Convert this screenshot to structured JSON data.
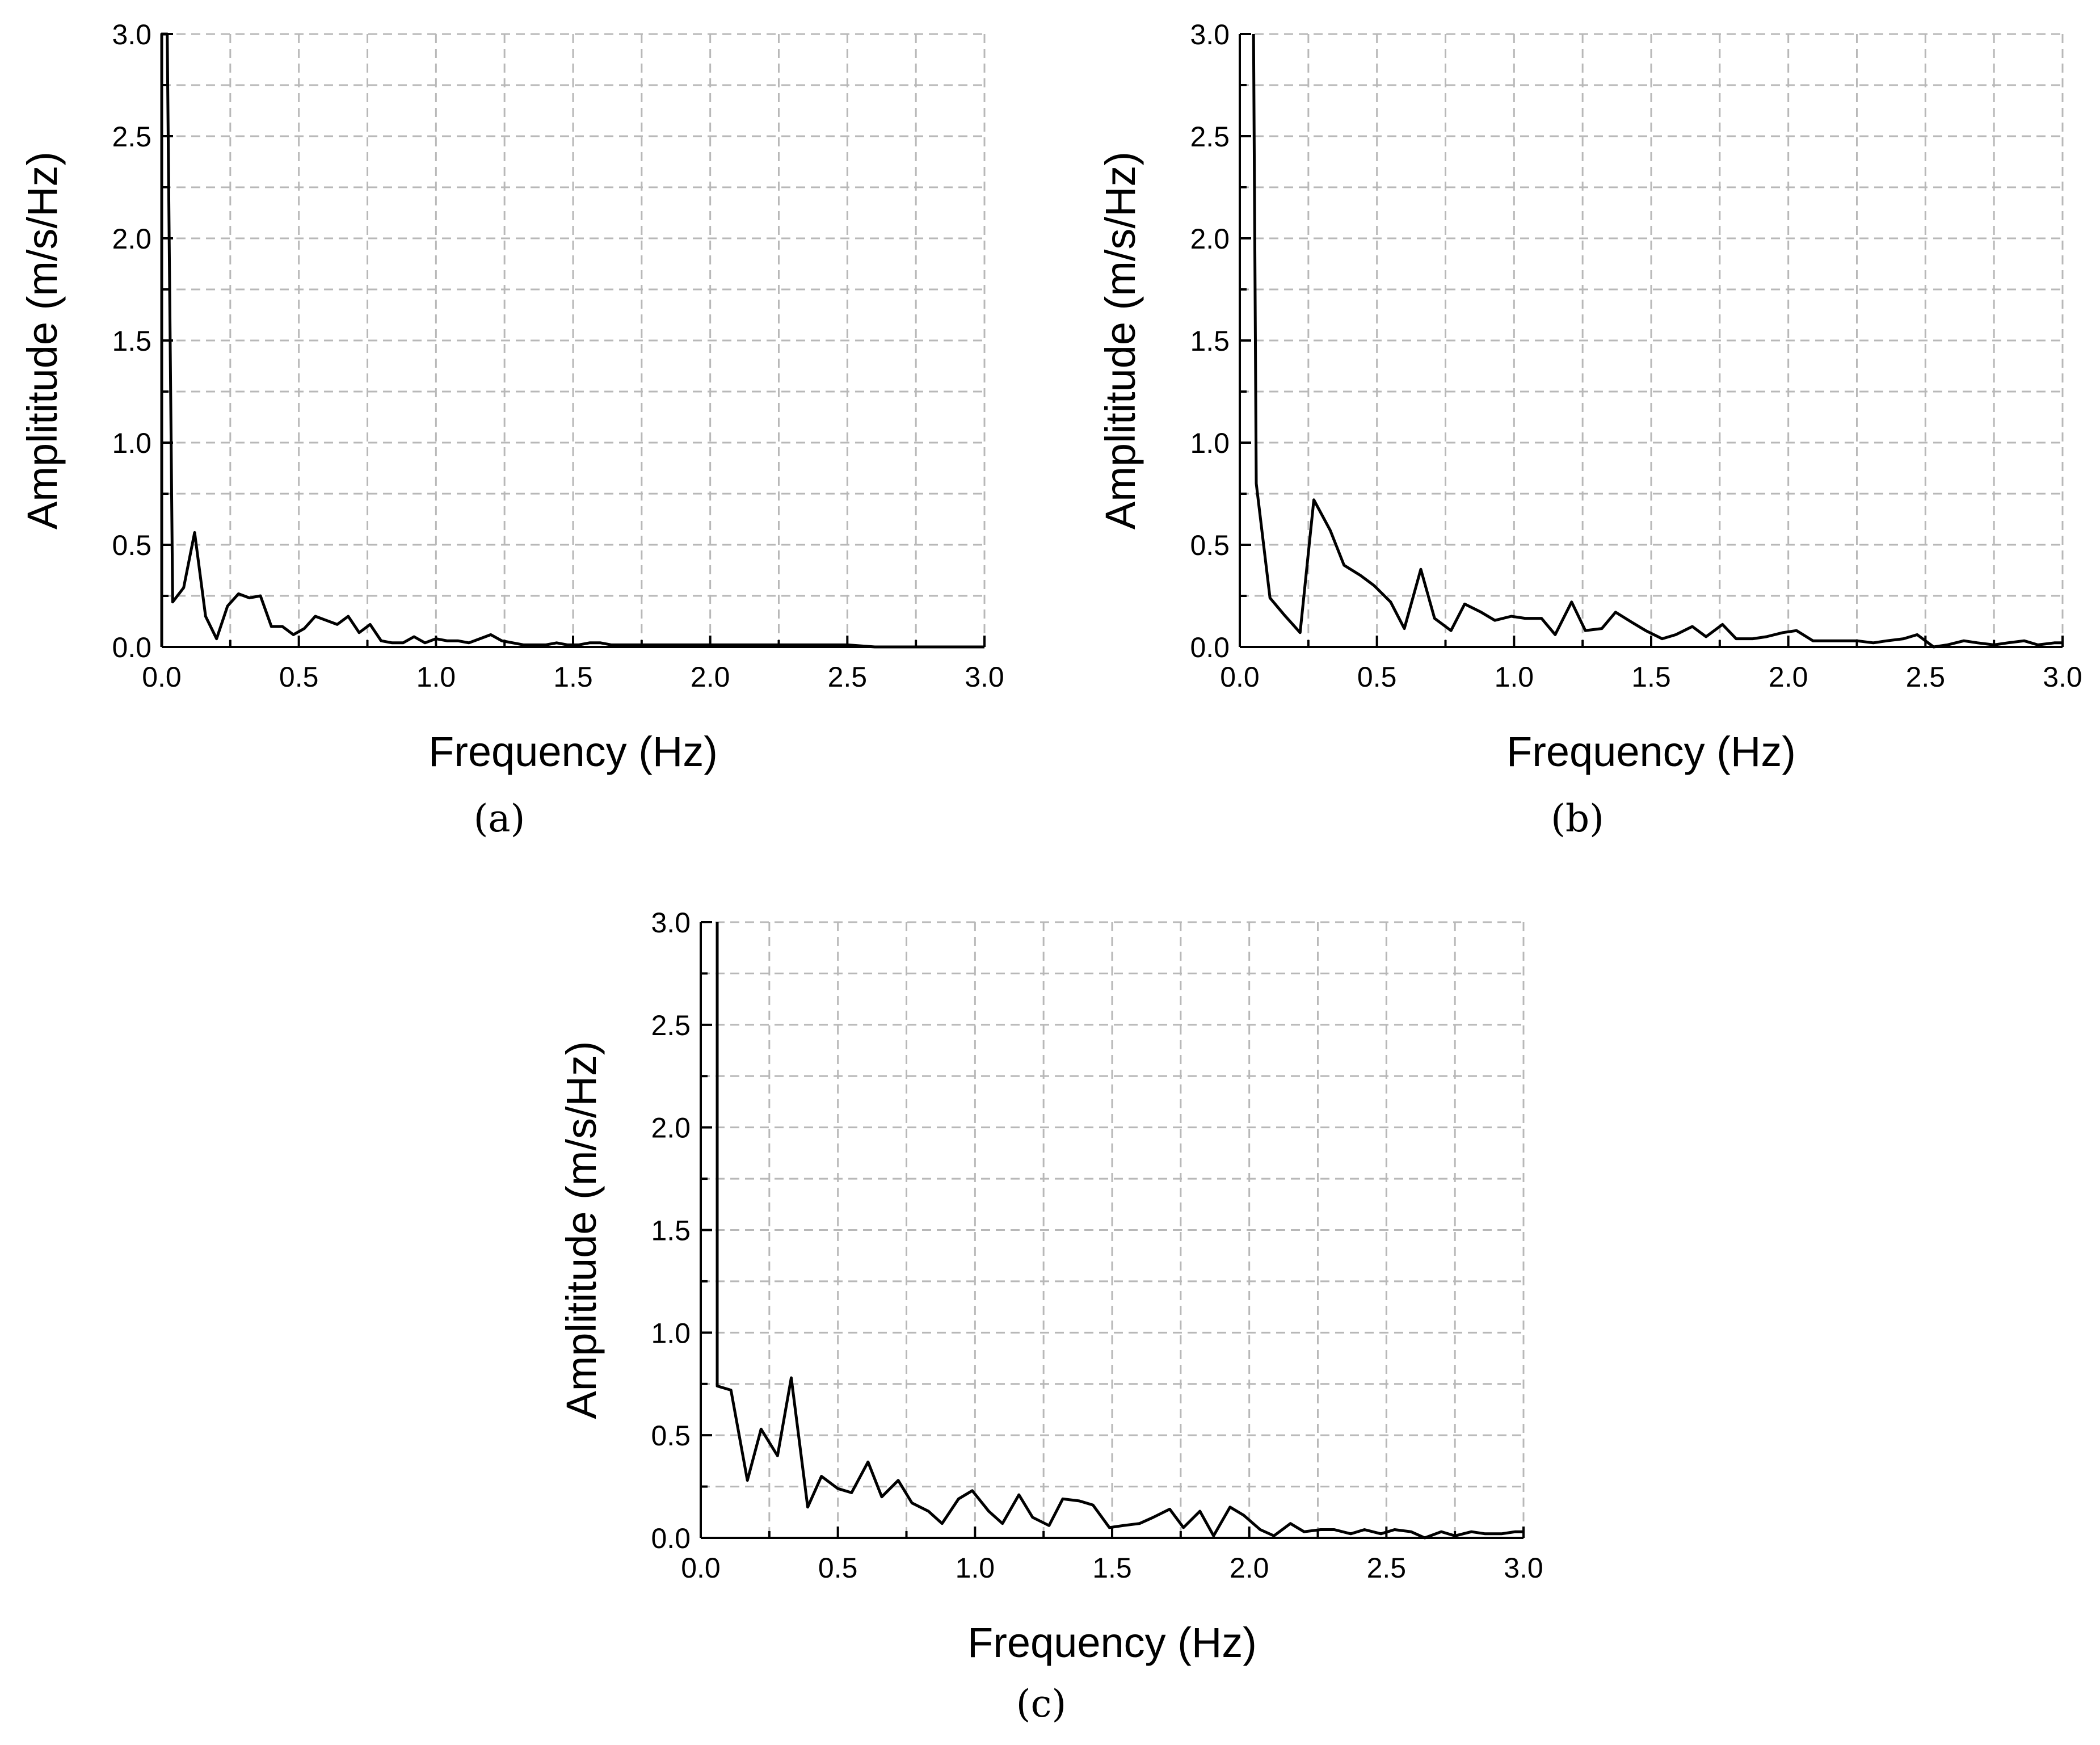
{
  "chart_data": [
    {
      "type": "line",
      "panel_label": "(a)",
      "xlabel": "Frequency (Hz)",
      "ylabel": "Amplititude (m/s/Hz)",
      "xlim": [
        0,
        3.0
      ],
      "ylim": [
        0,
        3.0
      ],
      "xticks": [
        "0.0",
        "0.5",
        "1.0",
        "1.5",
        "2.0",
        "2.5",
        "3.0"
      ],
      "yticks": [
        "0.0",
        "0.5",
        "1.0",
        "1.5",
        "2.0",
        "2.5",
        "3.0"
      ],
      "grid": true,
      "line_color": "#000000",
      "series": [
        {
          "x": [
            0.0,
            0.0,
            0.02,
            0.04,
            0.08,
            0.12,
            0.16,
            0.2,
            0.24,
            0.28,
            0.32,
            0.36,
            0.4,
            0.44,
            0.48,
            0.52,
            0.56,
            0.6,
            0.64,
            0.68,
            0.72,
            0.76,
            0.8,
            0.84,
            0.88,
            0.92,
            0.96,
            1.0,
            1.04,
            1.08,
            1.12,
            1.16,
            1.2,
            1.24,
            1.28,
            1.32,
            1.36,
            1.4,
            1.44,
            1.48,
            1.52,
            1.56,
            1.6,
            1.64,
            1.68,
            1.72,
            1.76,
            1.8,
            1.84,
            1.88,
            1.92,
            1.96,
            2.0,
            2.1,
            2.2,
            2.3,
            2.4,
            2.5,
            2.6,
            2.7,
            2.8,
            2.9,
            3.0
          ],
          "y": [
            0.0,
            3.0,
            3.0,
            0.22,
            0.29,
            0.56,
            0.15,
            0.04,
            0.2,
            0.26,
            0.24,
            0.25,
            0.1,
            0.1,
            0.06,
            0.09,
            0.15,
            0.13,
            0.11,
            0.15,
            0.07,
            0.11,
            0.03,
            0.02,
            0.02,
            0.05,
            0.02,
            0.04,
            0.03,
            0.03,
            0.02,
            0.04,
            0.06,
            0.03,
            0.02,
            0.01,
            0.01,
            0.01,
            0.02,
            0.01,
            0.01,
            0.02,
            0.02,
            0.01,
            0.01,
            0.01,
            0.01,
            0.01,
            0.01,
            0.01,
            0.01,
            0.01,
            0.01,
            0.01,
            0.01,
            0.01,
            0.01,
            0.01,
            0.0,
            0.0,
            0.0,
            0.0,
            0.0
          ]
        }
      ]
    },
    {
      "type": "line",
      "panel_label": "(b)",
      "xlabel": "Frequency (Hz)",
      "ylabel": "Amplititude (m/s/Hz)",
      "xlim": [
        0,
        3.0
      ],
      "ylim": [
        0,
        3.0
      ],
      "xticks": [
        "0.0",
        "0.5",
        "1.0",
        "1.5",
        "2.0",
        "2.5",
        "3.0"
      ],
      "yticks": [
        "0.0",
        "0.5",
        "1.0",
        "1.5",
        "2.0",
        "2.5",
        "3.0"
      ],
      "grid": true,
      "line_color": "#000000",
      "series": [
        {
          "x": [
            0.05,
            0.06,
            0.11,
            0.16,
            0.22,
            0.27,
            0.33,
            0.38,
            0.44,
            0.49,
            0.55,
            0.6,
            0.66,
            0.71,
            0.77,
            0.82,
            0.88,
            0.93,
            0.99,
            1.04,
            1.1,
            1.15,
            1.21,
            1.26,
            1.32,
            1.37,
            1.43,
            1.48,
            1.54,
            1.59,
            1.65,
            1.7,
            1.76,
            1.81,
            1.87,
            1.92,
            1.98,
            2.03,
            2.09,
            2.14,
            2.2,
            2.25,
            2.31,
            2.36,
            2.42,
            2.47,
            2.53,
            2.58,
            2.64,
            2.69,
            2.75,
            2.8,
            2.86,
            2.91,
            2.97,
            3.0
          ],
          "y": [
            3.0,
            0.8,
            0.24,
            0.16,
            0.07,
            0.72,
            0.57,
            0.4,
            0.35,
            0.3,
            0.22,
            0.09,
            0.38,
            0.14,
            0.08,
            0.21,
            0.17,
            0.13,
            0.15,
            0.14,
            0.14,
            0.06,
            0.22,
            0.08,
            0.09,
            0.17,
            0.12,
            0.08,
            0.04,
            0.06,
            0.1,
            0.05,
            0.11,
            0.04,
            0.04,
            0.05,
            0.07,
            0.08,
            0.03,
            0.03,
            0.03,
            0.03,
            0.02,
            0.03,
            0.04,
            0.06,
            0.0,
            0.01,
            0.03,
            0.02,
            0.01,
            0.02,
            0.03,
            0.01,
            0.02,
            0.02
          ]
        }
      ]
    },
    {
      "type": "line",
      "panel_label": "(c)",
      "xlabel": "Frequency (Hz)",
      "ylabel": "Amplititude (m/s/Hz)",
      "xlim": [
        0,
        3.0
      ],
      "ylim": [
        0,
        3.0
      ],
      "xticks": [
        "0.0",
        "0.5",
        "1.0",
        "1.5",
        "2.0",
        "2.5",
        "3.0"
      ],
      "yticks": [
        "0.0",
        "0.5",
        "1.0",
        "1.5",
        "2.0",
        "2.5",
        "3.0"
      ],
      "grid": true,
      "line_color": "#000000",
      "series": [
        {
          "x": [
            0.06,
            0.06,
            0.11,
            0.17,
            0.22,
            0.28,
            0.33,
            0.39,
            0.44,
            0.5,
            0.55,
            0.61,
            0.66,
            0.72,
            0.77,
            0.83,
            0.88,
            0.94,
            0.99,
            1.05,
            1.1,
            1.16,
            1.21,
            1.27,
            1.32,
            1.38,
            1.43,
            1.49,
            1.54,
            1.6,
            1.65,
            1.71,
            1.76,
            1.82,
            1.87,
            1.93,
            1.98,
            2.04,
            2.09,
            2.15,
            2.2,
            2.26,
            2.31,
            2.37,
            2.42,
            2.48,
            2.53,
            2.59,
            2.64,
            2.7,
            2.75,
            2.81,
            2.86,
            2.92,
            2.97,
            3.0
          ],
          "y": [
            3.0,
            0.74,
            0.72,
            0.28,
            0.53,
            0.4,
            0.78,
            0.15,
            0.3,
            0.24,
            0.22,
            0.37,
            0.2,
            0.28,
            0.17,
            0.13,
            0.07,
            0.19,
            0.23,
            0.13,
            0.07,
            0.21,
            0.1,
            0.06,
            0.19,
            0.18,
            0.16,
            0.05,
            0.06,
            0.07,
            0.1,
            0.14,
            0.05,
            0.13,
            0.01,
            0.15,
            0.11,
            0.04,
            0.01,
            0.07,
            0.03,
            0.04,
            0.04,
            0.02,
            0.04,
            0.02,
            0.04,
            0.03,
            0.0,
            0.03,
            0.01,
            0.03,
            0.02,
            0.02,
            0.03,
            0.03
          ]
        }
      ]
    }
  ]
}
